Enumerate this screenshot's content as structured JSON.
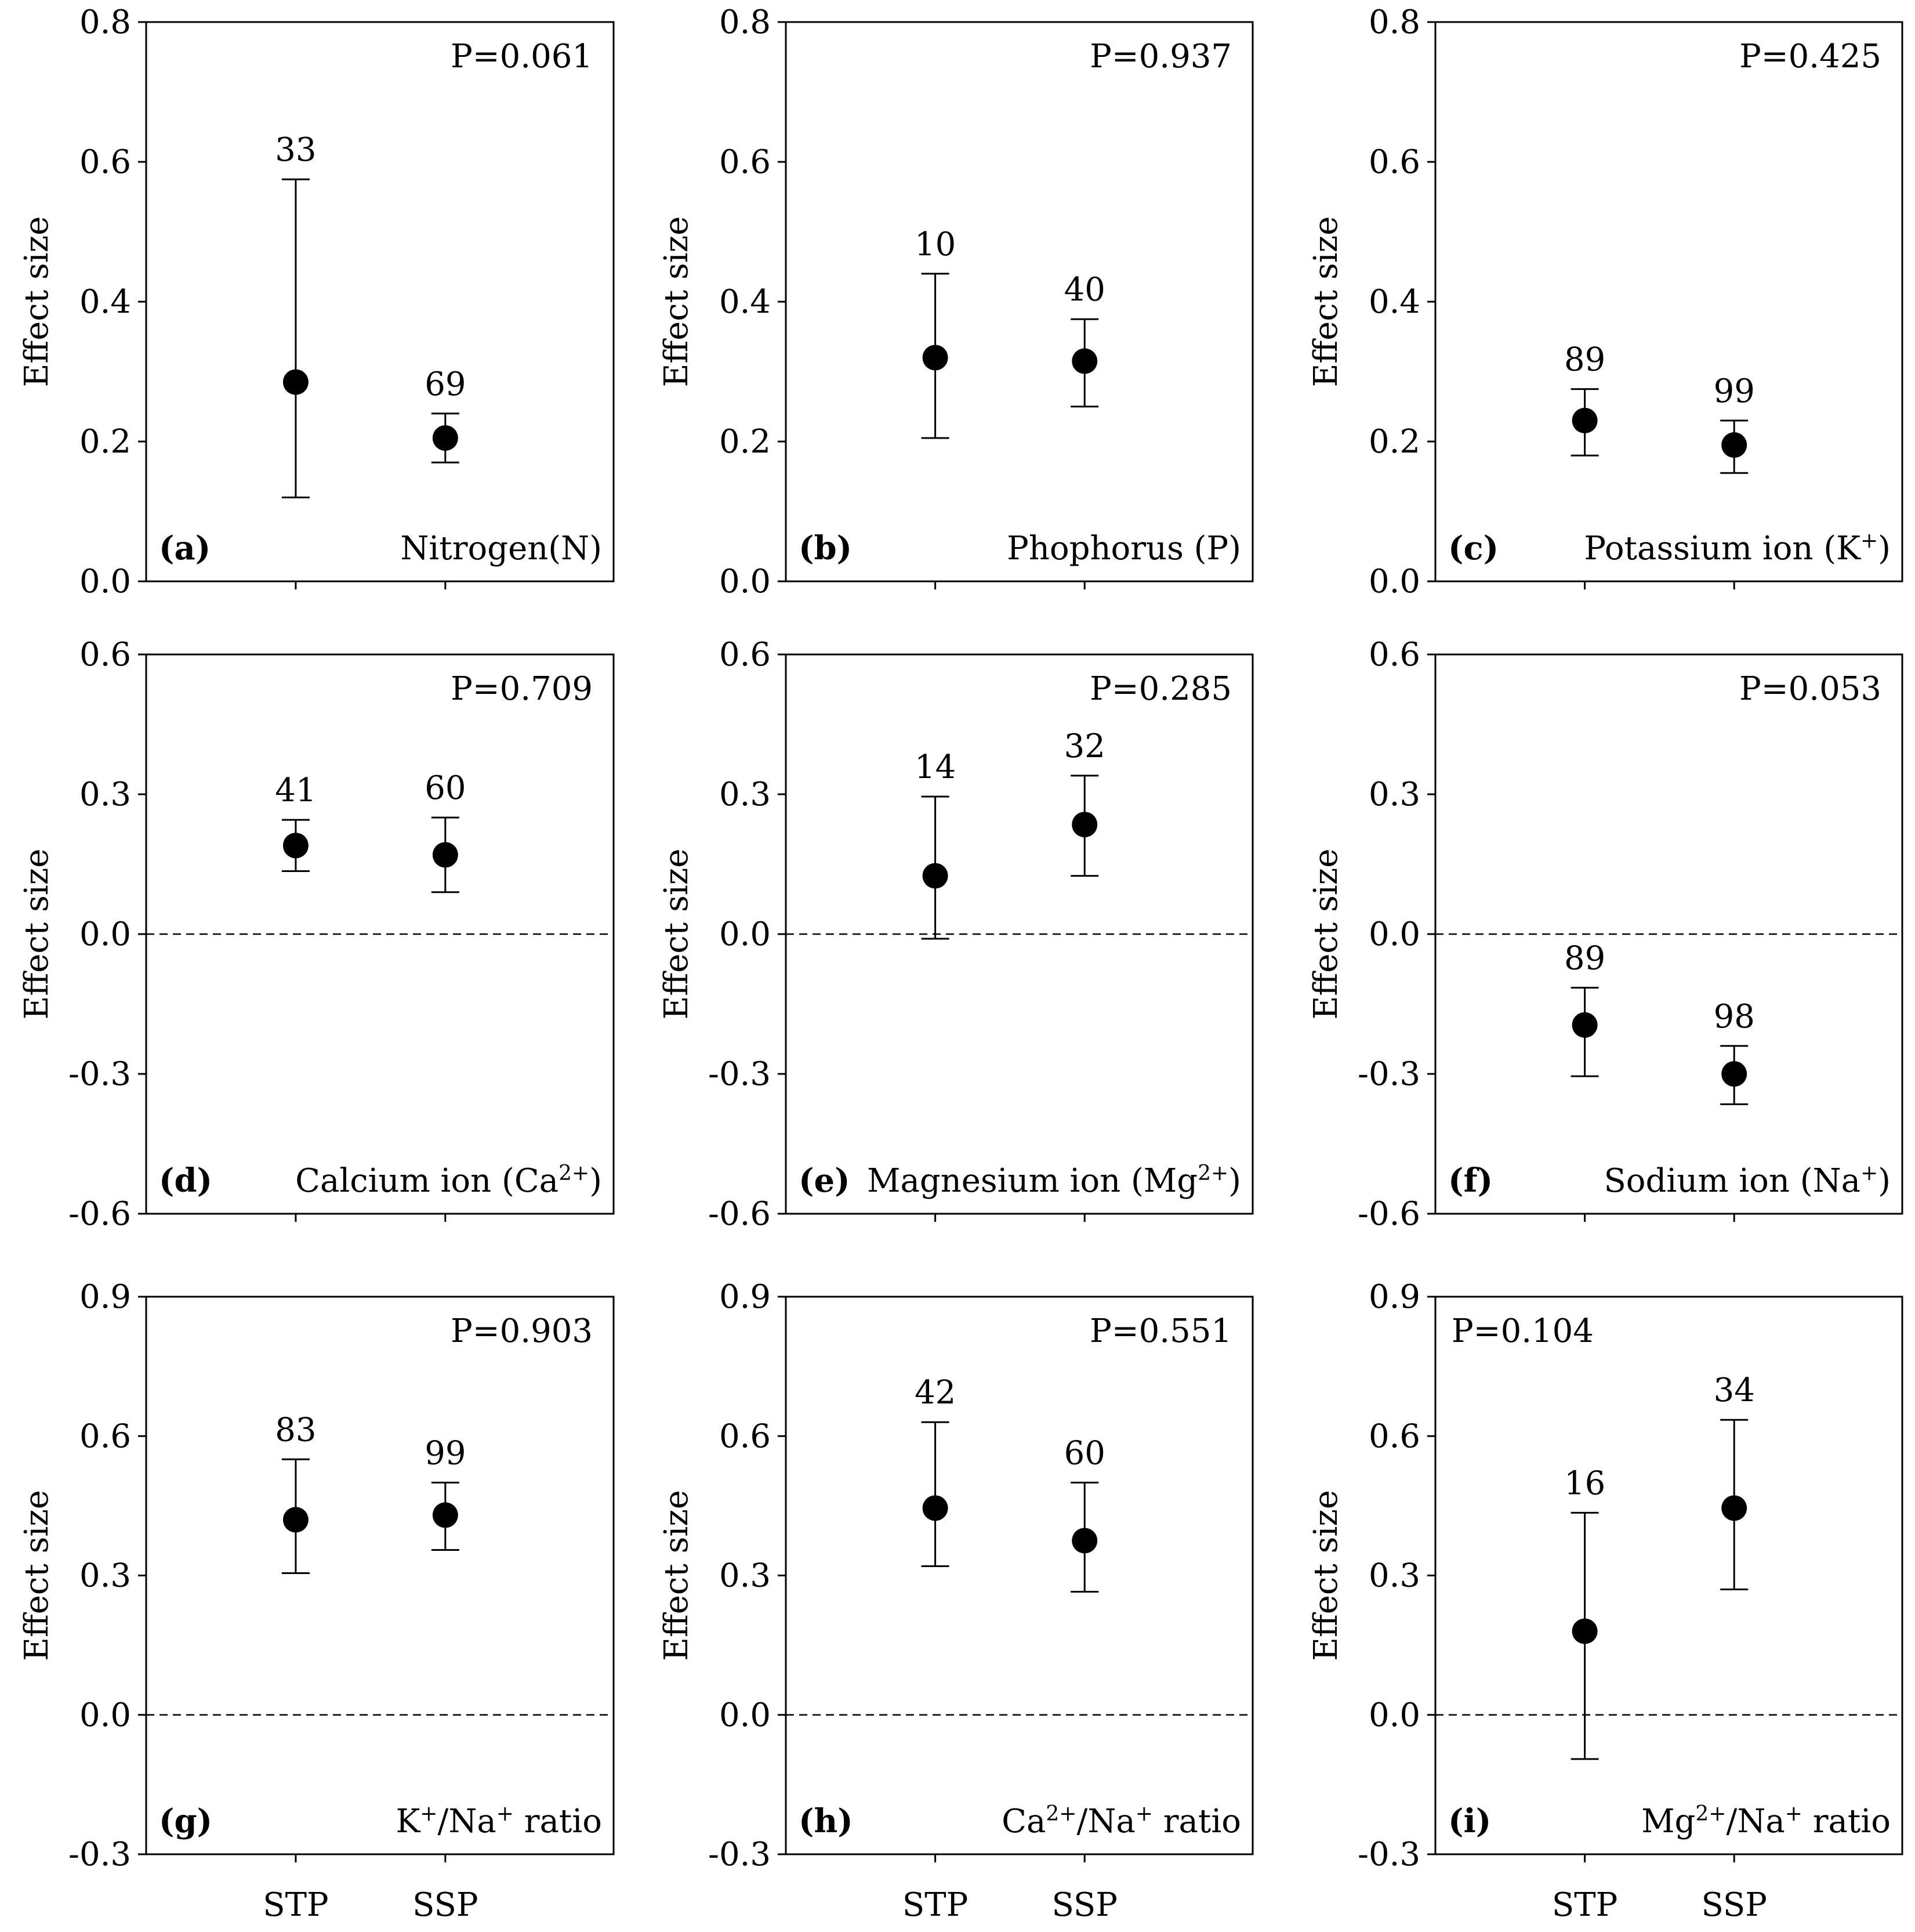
{
  "chart_data": [
    {
      "panel": "a",
      "type": "scatter",
      "panel_label": "(a)",
      "title": "Nitrogen(N)",
      "ylabel": "Effect size",
      "p_value": "P=0.061",
      "ylim": [
        0.0,
        0.8
      ],
      "yticks": [
        "0.0",
        "0.2",
        "0.4",
        "0.6",
        "0.8"
      ],
      "xlabels": [
        "",
        ""
      ],
      "points": [
        {
          "category": "STP",
          "mean": 0.285,
          "ci_low": 0.12,
          "ci_high": 0.575,
          "n": "33"
        },
        {
          "category": "SSP",
          "mean": 0.205,
          "ci_low": 0.17,
          "ci_high": 0.24,
          "n": "69"
        }
      ]
    },
    {
      "panel": "b",
      "type": "scatter",
      "panel_label": "(b)",
      "title": "Phophorus (P)",
      "ylabel": "Effect size",
      "p_value": "P=0.937",
      "ylim": [
        0.0,
        0.8
      ],
      "yticks": [
        "0.0",
        "0.2",
        "0.4",
        "0.6",
        "0.8"
      ],
      "xlabels": [
        "",
        ""
      ],
      "points": [
        {
          "category": "STP",
          "mean": 0.32,
          "ci_low": 0.205,
          "ci_high": 0.44,
          "n": "10"
        },
        {
          "category": "SSP",
          "mean": 0.315,
          "ci_low": 0.25,
          "ci_high": 0.375,
          "n": "40"
        }
      ]
    },
    {
      "panel": "c",
      "type": "scatter",
      "panel_label": "(c)",
      "title": "Potassium ion (K",
      "title_sup": "+",
      "title_after": ")",
      "ylabel": "Effect size",
      "p_value": "P=0.425",
      "ylim": [
        0.0,
        0.8
      ],
      "yticks": [
        "0.0",
        "0.2",
        "0.4",
        "0.6",
        "0.8"
      ],
      "xlabels": [
        "",
        ""
      ],
      "points": [
        {
          "category": "STP",
          "mean": 0.23,
          "ci_low": 0.18,
          "ci_high": 0.275,
          "n": "89"
        },
        {
          "category": "SSP",
          "mean": 0.195,
          "ci_low": 0.155,
          "ci_high": 0.23,
          "n": "99"
        }
      ]
    },
    {
      "panel": "d",
      "type": "scatter",
      "panel_label": "(d)",
      "title": "Calcium ion (Ca",
      "title_sup": "2+",
      "title_after": ")",
      "ylabel": "Effect size",
      "p_value": "P=0.709",
      "ylim": [
        -0.6,
        0.6
      ],
      "yticks": [
        "-0.6",
        "-0.3",
        "0.0",
        "0.3",
        "0.6"
      ],
      "zero_line": true,
      "xlabels": [
        "",
        ""
      ],
      "points": [
        {
          "category": "STP",
          "mean": 0.19,
          "ci_low": 0.135,
          "ci_high": 0.245,
          "n": "41"
        },
        {
          "category": "SSP",
          "mean": 0.17,
          "ci_low": 0.09,
          "ci_high": 0.25,
          "n": "60"
        }
      ]
    },
    {
      "panel": "e",
      "type": "scatter",
      "panel_label": "(e)",
      "title": "Magnesium ion (Mg",
      "title_sup": "2+",
      "title_after": ")",
      "ylabel": "Effect size",
      "p_value": "P=0.285",
      "ylim": [
        -0.6,
        0.6
      ],
      "yticks": [
        "-0.6",
        "-0.3",
        "0.0",
        "0.3",
        "0.6"
      ],
      "zero_line": true,
      "xlabels": [
        "",
        ""
      ],
      "points": [
        {
          "category": "STP",
          "mean": 0.125,
          "ci_low": -0.01,
          "ci_high": 0.295,
          "n": "14"
        },
        {
          "category": "SSP",
          "mean": 0.235,
          "ci_low": 0.125,
          "ci_high": 0.34,
          "n": "32"
        }
      ]
    },
    {
      "panel": "f",
      "type": "scatter",
      "panel_label": "(f)",
      "title": "Sodium ion (Na",
      "title_sup": "+",
      "title_after": ")",
      "ylabel": "Effect size",
      "p_value": "P=0.053",
      "ylim": [
        -0.6,
        0.6
      ],
      "yticks": [
        "-0.6",
        "-0.3",
        "0.0",
        "0.3",
        "0.6"
      ],
      "zero_line": true,
      "xlabels": [
        "",
        ""
      ],
      "points": [
        {
          "category": "STP",
          "mean": -0.195,
          "ci_low": -0.305,
          "ci_high": -0.115,
          "n": "89"
        },
        {
          "category": "SSP",
          "mean": -0.3,
          "ci_low": -0.365,
          "ci_high": -0.24,
          "n": "98"
        }
      ]
    },
    {
      "panel": "g",
      "type": "scatter",
      "panel_label": "(g)",
      "title": "K",
      "title_sup": "+",
      "title_mid": "/Na",
      "title_sup2": "+",
      "title_after": " ratio",
      "ylabel": "Effect size",
      "p_value": "P=0.903",
      "ylim": [
        -0.3,
        0.9
      ],
      "yticks": [
        "-0.3",
        "0.0",
        "0.3",
        "0.6",
        "0.9"
      ],
      "zero_line": true,
      "xlabels": [
        "STP",
        "SSP"
      ],
      "points": [
        {
          "category": "STP",
          "mean": 0.42,
          "ci_low": 0.305,
          "ci_high": 0.55,
          "n": "83"
        },
        {
          "category": "SSP",
          "mean": 0.43,
          "ci_low": 0.355,
          "ci_high": 0.5,
          "n": "99"
        }
      ]
    },
    {
      "panel": "h",
      "type": "scatter",
      "panel_label": "(h)",
      "title": "Ca",
      "title_sup": "2+",
      "title_mid": "/Na",
      "title_sup2": "+",
      "title_after": " ratio",
      "ylabel": "Effect size",
      "p_value": "P=0.551",
      "ylim": [
        -0.3,
        0.9
      ],
      "yticks": [
        "-0.3",
        "0.0",
        "0.3",
        "0.6",
        "0.9"
      ],
      "zero_line": true,
      "xlabels": [
        "STP",
        "SSP"
      ],
      "points": [
        {
          "category": "STP",
          "mean": 0.445,
          "ci_low": 0.32,
          "ci_high": 0.63,
          "n": "42"
        },
        {
          "category": "SSP",
          "mean": 0.375,
          "ci_low": 0.265,
          "ci_high": 0.5,
          "n": "60"
        }
      ]
    },
    {
      "panel": "i",
      "type": "scatter",
      "panel_label": "(i)",
      "title": "Mg",
      "title_sup": "2+",
      "title_mid": "/Na",
      "title_sup2": "+",
      "title_after": " ratio",
      "ylabel": "Effect size",
      "p_value": "P=0.104",
      "p_align": "left",
      "ylim": [
        -0.3,
        0.9
      ],
      "yticks": [
        "-0.3",
        "0.0",
        "0.3",
        "0.6",
        "0.9"
      ],
      "zero_line": true,
      "xlabels": [
        "STP",
        "SSP"
      ],
      "points": [
        {
          "category": "STP",
          "mean": 0.18,
          "ci_low": -0.095,
          "ci_high": 0.435,
          "n": "16"
        },
        {
          "category": "SSP",
          "mean": 0.445,
          "ci_low": 0.27,
          "ci_high": 0.635,
          "n": "34"
        }
      ]
    }
  ]
}
